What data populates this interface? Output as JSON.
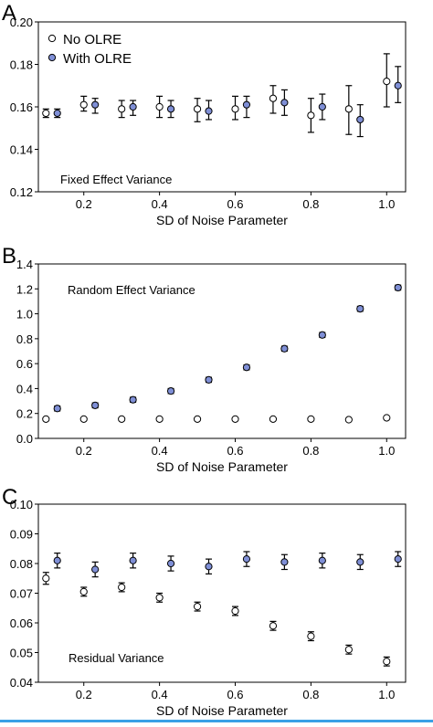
{
  "figure": {
    "accent_color": "#3aa0e6"
  },
  "chart_data": [
    {
      "panel_letter": "A",
      "type": "scatter",
      "title": "Fixed Effect Variance",
      "xlabel": "SD of Noise Parameter",
      "ylabel": "",
      "xlim": [
        0.08,
        1.05
      ],
      "ylim": [
        0.12,
        0.2
      ],
      "xticks": [
        "0.2",
        "0.4",
        "0.6",
        "0.8",
        "1.0"
      ],
      "yticks": [
        "0.12",
        "0.14",
        "0.16",
        "0.18",
        "0.20"
      ],
      "legend": {
        "position": "top-left",
        "entries": [
          "No OLRE",
          "With OLRE"
        ]
      },
      "series": [
        {
          "name": "No OLRE",
          "marker_fill": "#ffffff",
          "points": [
            {
              "x": 0.1,
              "y": 0.157,
              "lo": 0.155,
              "hi": 0.159
            },
            {
              "x": 0.2,
              "y": 0.161,
              "lo": 0.158,
              "hi": 0.165
            },
            {
              "x": 0.3,
              "y": 0.159,
              "lo": 0.155,
              "hi": 0.163
            },
            {
              "x": 0.4,
              "y": 0.16,
              "lo": 0.155,
              "hi": 0.165
            },
            {
              "x": 0.5,
              "y": 0.159,
              "lo": 0.153,
              "hi": 0.164
            },
            {
              "x": 0.6,
              "y": 0.159,
              "lo": 0.154,
              "hi": 0.165
            },
            {
              "x": 0.7,
              "y": 0.164,
              "lo": 0.157,
              "hi": 0.17
            },
            {
              "x": 0.8,
              "y": 0.156,
              "lo": 0.148,
              "hi": 0.164
            },
            {
              "x": 0.9,
              "y": 0.159,
              "lo": 0.147,
              "hi": 0.17
            },
            {
              "x": 1.0,
              "y": 0.172,
              "lo": 0.16,
              "hi": 0.185
            }
          ]
        },
        {
          "name": "With OLRE",
          "marker_fill": "#7f8fd6",
          "points": [
            {
              "x": 0.13,
              "y": 0.157,
              "lo": 0.155,
              "hi": 0.159
            },
            {
              "x": 0.23,
              "y": 0.161,
              "lo": 0.157,
              "hi": 0.164
            },
            {
              "x": 0.33,
              "y": 0.16,
              "lo": 0.156,
              "hi": 0.163
            },
            {
              "x": 0.43,
              "y": 0.159,
              "lo": 0.155,
              "hi": 0.163
            },
            {
              "x": 0.53,
              "y": 0.158,
              "lo": 0.154,
              "hi": 0.163
            },
            {
              "x": 0.63,
              "y": 0.161,
              "lo": 0.155,
              "hi": 0.165
            },
            {
              "x": 0.73,
              "y": 0.162,
              "lo": 0.156,
              "hi": 0.168
            },
            {
              "x": 0.83,
              "y": 0.16,
              "lo": 0.154,
              "hi": 0.166
            },
            {
              "x": 0.93,
              "y": 0.154,
              "lo": 0.146,
              "hi": 0.161
            },
            {
              "x": 1.03,
              "y": 0.17,
              "lo": 0.162,
              "hi": 0.179
            }
          ]
        }
      ]
    },
    {
      "panel_letter": "B",
      "type": "scatter",
      "title": "Random Effect Variance",
      "xlabel": "SD of Noise Parameter",
      "ylabel": "",
      "xlim": [
        0.08,
        1.05
      ],
      "ylim": [
        0.0,
        1.4
      ],
      "xticks": [
        "0.2",
        "0.4",
        "0.6",
        "0.8",
        "1.0"
      ],
      "yticks": [
        "0.0",
        "0.2",
        "0.4",
        "0.6",
        "0.8",
        "1.0",
        "1.2",
        "1.4"
      ],
      "series": [
        {
          "name": "No OLRE",
          "marker_fill": "#ffffff",
          "points": [
            {
              "x": 0.1,
              "y": 0.155,
              "lo": 0.145,
              "hi": 0.165
            },
            {
              "x": 0.2,
              "y": 0.155,
              "lo": 0.145,
              "hi": 0.165
            },
            {
              "x": 0.3,
              "y": 0.155,
              "lo": 0.145,
              "hi": 0.165
            },
            {
              "x": 0.4,
              "y": 0.155,
              "lo": 0.145,
              "hi": 0.165
            },
            {
              "x": 0.5,
              "y": 0.155,
              "lo": 0.145,
              "hi": 0.165
            },
            {
              "x": 0.6,
              "y": 0.155,
              "lo": 0.145,
              "hi": 0.165
            },
            {
              "x": 0.7,
              "y": 0.155,
              "lo": 0.145,
              "hi": 0.165
            },
            {
              "x": 0.8,
              "y": 0.155,
              "lo": 0.145,
              "hi": 0.165
            },
            {
              "x": 0.9,
              "y": 0.15,
              "lo": 0.14,
              "hi": 0.16
            },
            {
              "x": 1.0,
              "y": 0.165,
              "lo": 0.155,
              "hi": 0.175
            }
          ]
        },
        {
          "name": "With OLRE",
          "marker_fill": "#7f8fd6",
          "points": [
            {
              "x": 0.13,
              "y": 0.24,
              "lo": 0.22,
              "hi": 0.26
            },
            {
              "x": 0.23,
              "y": 0.265,
              "lo": 0.245,
              "hi": 0.285
            },
            {
              "x": 0.33,
              "y": 0.31,
              "lo": 0.29,
              "hi": 0.33
            },
            {
              "x": 0.43,
              "y": 0.38,
              "lo": 0.36,
              "hi": 0.4
            },
            {
              "x": 0.53,
              "y": 0.47,
              "lo": 0.45,
              "hi": 0.49
            },
            {
              "x": 0.63,
              "y": 0.57,
              "lo": 0.55,
              "hi": 0.59
            },
            {
              "x": 0.73,
              "y": 0.72,
              "lo": 0.7,
              "hi": 0.74
            },
            {
              "x": 0.83,
              "y": 0.83,
              "lo": 0.81,
              "hi": 0.85
            },
            {
              "x": 0.93,
              "y": 1.04,
              "lo": 1.02,
              "hi": 1.06
            },
            {
              "x": 1.03,
              "y": 1.21,
              "lo": 1.19,
              "hi": 1.23
            }
          ]
        }
      ]
    },
    {
      "panel_letter": "C",
      "type": "scatter",
      "title": "Residual Variance",
      "xlabel": "SD of Noise Parameter",
      "ylabel": "",
      "xlim": [
        0.08,
        1.05
      ],
      "ylim": [
        0.04,
        0.1
      ],
      "xticks": [
        "0.2",
        "0.4",
        "0.6",
        "0.8",
        "1.0"
      ],
      "yticks": [
        "0.04",
        "0.05",
        "0.06",
        "0.07",
        "0.08",
        "0.09",
        "0.10"
      ],
      "series": [
        {
          "name": "No OLRE",
          "marker_fill": "#ffffff",
          "points": [
            {
              "x": 0.1,
              "y": 0.075,
              "lo": 0.073,
              "hi": 0.077
            },
            {
              "x": 0.2,
              "y": 0.0705,
              "lo": 0.069,
              "hi": 0.072
            },
            {
              "x": 0.3,
              "y": 0.072,
              "lo": 0.0705,
              "hi": 0.0735
            },
            {
              "x": 0.4,
              "y": 0.0685,
              "lo": 0.067,
              "hi": 0.07
            },
            {
              "x": 0.5,
              "y": 0.0655,
              "lo": 0.064,
              "hi": 0.067
            },
            {
              "x": 0.6,
              "y": 0.064,
              "lo": 0.0625,
              "hi": 0.0655
            },
            {
              "x": 0.7,
              "y": 0.059,
              "lo": 0.0575,
              "hi": 0.0605
            },
            {
              "x": 0.8,
              "y": 0.0555,
              "lo": 0.054,
              "hi": 0.057
            },
            {
              "x": 0.9,
              "y": 0.051,
              "lo": 0.0495,
              "hi": 0.0525
            },
            {
              "x": 1.0,
              "y": 0.047,
              "lo": 0.0455,
              "hi": 0.0485
            }
          ]
        },
        {
          "name": "With OLRE",
          "marker_fill": "#7f8fd6",
          "points": [
            {
              "x": 0.13,
              "y": 0.081,
              "lo": 0.0785,
              "hi": 0.0835
            },
            {
              "x": 0.23,
              "y": 0.078,
              "lo": 0.0755,
              "hi": 0.0805
            },
            {
              "x": 0.33,
              "y": 0.081,
              "lo": 0.0785,
              "hi": 0.0835
            },
            {
              "x": 0.43,
              "y": 0.08,
              "lo": 0.0775,
              "hi": 0.0825
            },
            {
              "x": 0.53,
              "y": 0.079,
              "lo": 0.0765,
              "hi": 0.0815
            },
            {
              "x": 0.63,
              "y": 0.0815,
              "lo": 0.079,
              "hi": 0.084
            },
            {
              "x": 0.73,
              "y": 0.0805,
              "lo": 0.078,
              "hi": 0.083
            },
            {
              "x": 0.83,
              "y": 0.081,
              "lo": 0.0785,
              "hi": 0.0835
            },
            {
              "x": 0.93,
              "y": 0.0805,
              "lo": 0.078,
              "hi": 0.083
            },
            {
              "x": 1.03,
              "y": 0.0815,
              "lo": 0.079,
              "hi": 0.084
            }
          ]
        }
      ]
    }
  ]
}
